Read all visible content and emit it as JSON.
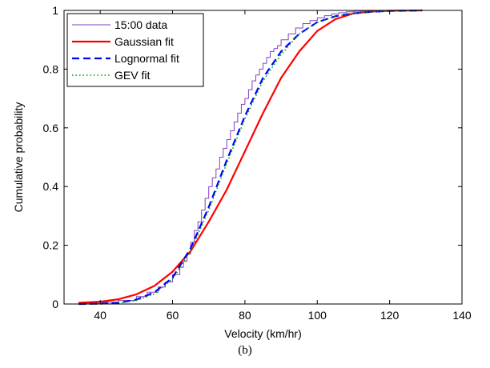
{
  "caption": "(b)",
  "chart_data": {
    "type": "line",
    "xlabel": "Velocity (km/hr)",
    "ylabel": "Cumulative probability",
    "xlim": [
      30,
      140
    ],
    "ylim": [
      0,
      1
    ],
    "xticks": [
      40,
      60,
      80,
      100,
      120,
      140
    ],
    "yticks": [
      0,
      0.2,
      0.4,
      0.6,
      0.8,
      1
    ],
    "grid": false,
    "legend_position": "top-left",
    "series": [
      {
        "name": "15:00 data",
        "style": "step",
        "color": "#8040c0",
        "x": [
          34,
          40,
          45,
          50,
          53,
          56,
          58,
          60,
          62,
          63,
          64,
          65,
          66,
          67,
          68,
          69,
          70,
          71,
          72,
          73,
          74,
          75,
          76,
          77,
          78,
          79,
          80,
          81,
          82,
          83,
          84,
          85,
          86,
          87,
          88,
          89,
          90,
          92,
          94,
          96,
          98,
          100,
          102,
          104,
          106,
          108,
          110,
          114,
          118,
          122,
          128
        ],
        "y": [
          0.003,
          0.006,
          0.012,
          0.025,
          0.04,
          0.058,
          0.075,
          0.1,
          0.125,
          0.145,
          0.17,
          0.21,
          0.25,
          0.28,
          0.32,
          0.36,
          0.4,
          0.43,
          0.46,
          0.5,
          0.53,
          0.56,
          0.59,
          0.62,
          0.65,
          0.68,
          0.7,
          0.73,
          0.76,
          0.78,
          0.8,
          0.82,
          0.84,
          0.86,
          0.87,
          0.88,
          0.9,
          0.92,
          0.94,
          0.955,
          0.965,
          0.975,
          0.982,
          0.988,
          0.992,
          0.995,
          0.997,
          0.998,
          0.999,
          1.0,
          1.0
        ]
      },
      {
        "name": "Gaussian fit",
        "style": "solid",
        "color": "#ff0000",
        "x": [
          34,
          40,
          45,
          50,
          55,
          60,
          65,
          70,
          75,
          80,
          85,
          90,
          95,
          100,
          105,
          110,
          115,
          120,
          129
        ],
        "y": [
          0.004,
          0.008,
          0.016,
          0.033,
          0.062,
          0.11,
          0.18,
          0.28,
          0.39,
          0.52,
          0.65,
          0.77,
          0.86,
          0.93,
          0.97,
          0.99,
          0.996,
          0.999,
          1.0
        ]
      },
      {
        "name": "Lognormal fit",
        "style": "dashed",
        "color": "#0000ff",
        "x": [
          34,
          40,
          45,
          50,
          55,
          60,
          65,
          70,
          75,
          80,
          85,
          90,
          95,
          100,
          105,
          110,
          115,
          120,
          129
        ],
        "y": [
          0.0,
          0.001,
          0.004,
          0.015,
          0.04,
          0.09,
          0.19,
          0.33,
          0.49,
          0.64,
          0.77,
          0.86,
          0.92,
          0.96,
          0.98,
          0.99,
          0.995,
          0.998,
          1.0
        ]
      },
      {
        "name": "GEV fit",
        "style": "dotted",
        "color": "#00a000",
        "x": [
          34,
          40,
          45,
          50,
          55,
          60,
          65,
          70,
          75,
          80,
          85,
          90,
          95,
          100,
          105,
          110,
          115,
          120,
          129
        ],
        "y": [
          0.0,
          0.0,
          0.003,
          0.012,
          0.035,
          0.085,
          0.18,
          0.32,
          0.48,
          0.63,
          0.76,
          0.85,
          0.92,
          0.96,
          0.98,
          0.99,
          0.995,
          0.998,
          1.0
        ]
      }
    ]
  }
}
